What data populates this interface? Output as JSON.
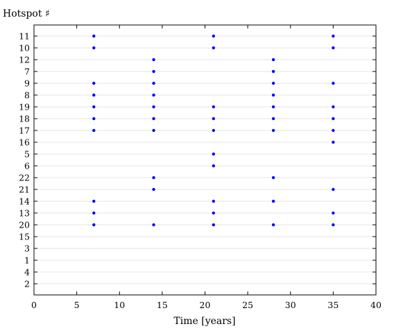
{
  "chart_data": {
    "type": "scatter",
    "ylabel": "Hotspot ♯",
    "xlabel": "Time [years]",
    "xlim": [
      0,
      40
    ],
    "x_ticks": [
      0,
      5,
      10,
      15,
      20,
      25,
      30,
      35,
      40
    ],
    "y_categories": [
      "11",
      "10",
      "12",
      "7",
      "9",
      "8",
      "19",
      "18",
      "17",
      "16",
      "5",
      "6",
      "22",
      "21",
      "14",
      "13",
      "20",
      "15",
      "3",
      "1",
      "4",
      "2"
    ],
    "grid": "horizontal",
    "marker_color": "#0000ff",
    "series": [
      {
        "points": [
          {
            "x": 7,
            "y": "11"
          },
          {
            "x": 7,
            "y": "10"
          },
          {
            "x": 7,
            "y": "9"
          },
          {
            "x": 7,
            "y": "8"
          },
          {
            "x": 7,
            "y": "19"
          },
          {
            "x": 7,
            "y": "18"
          },
          {
            "x": 7,
            "y": "17"
          },
          {
            "x": 7,
            "y": "14"
          },
          {
            "x": 7,
            "y": "13"
          },
          {
            "x": 7,
            "y": "20"
          },
          {
            "x": 14,
            "y": "12"
          },
          {
            "x": 14,
            "y": "7"
          },
          {
            "x": 14,
            "y": "9"
          },
          {
            "x": 14,
            "y": "8"
          },
          {
            "x": 14,
            "y": "19"
          },
          {
            "x": 14,
            "y": "18"
          },
          {
            "x": 14,
            "y": "17"
          },
          {
            "x": 14,
            "y": "22"
          },
          {
            "x": 14,
            "y": "21"
          },
          {
            "x": 14,
            "y": "20"
          },
          {
            "x": 21,
            "y": "11"
          },
          {
            "x": 21,
            "y": "10"
          },
          {
            "x": 21,
            "y": "19"
          },
          {
            "x": 21,
            "y": "18"
          },
          {
            "x": 21,
            "y": "17"
          },
          {
            "x": 21,
            "y": "5"
          },
          {
            "x": 21,
            "y": "6"
          },
          {
            "x": 21,
            "y": "14"
          },
          {
            "x": 21,
            "y": "13"
          },
          {
            "x": 21,
            "y": "20"
          },
          {
            "x": 28,
            "y": "12"
          },
          {
            "x": 28,
            "y": "7"
          },
          {
            "x": 28,
            "y": "9"
          },
          {
            "x": 28,
            "y": "8"
          },
          {
            "x": 28,
            "y": "19"
          },
          {
            "x": 28,
            "y": "18"
          },
          {
            "x": 28,
            "y": "17"
          },
          {
            "x": 28,
            "y": "22"
          },
          {
            "x": 28,
            "y": "14"
          },
          {
            "x": 28,
            "y": "20"
          },
          {
            "x": 35,
            "y": "11"
          },
          {
            "x": 35,
            "y": "10"
          },
          {
            "x": 35,
            "y": "9"
          },
          {
            "x": 35,
            "y": "19"
          },
          {
            "x": 35,
            "y": "18"
          },
          {
            "x": 35,
            "y": "17"
          },
          {
            "x": 35,
            "y": "16"
          },
          {
            "x": 35,
            "y": "21"
          },
          {
            "x": 35,
            "y": "13"
          },
          {
            "x": 35,
            "y": "20"
          }
        ]
      }
    ]
  }
}
